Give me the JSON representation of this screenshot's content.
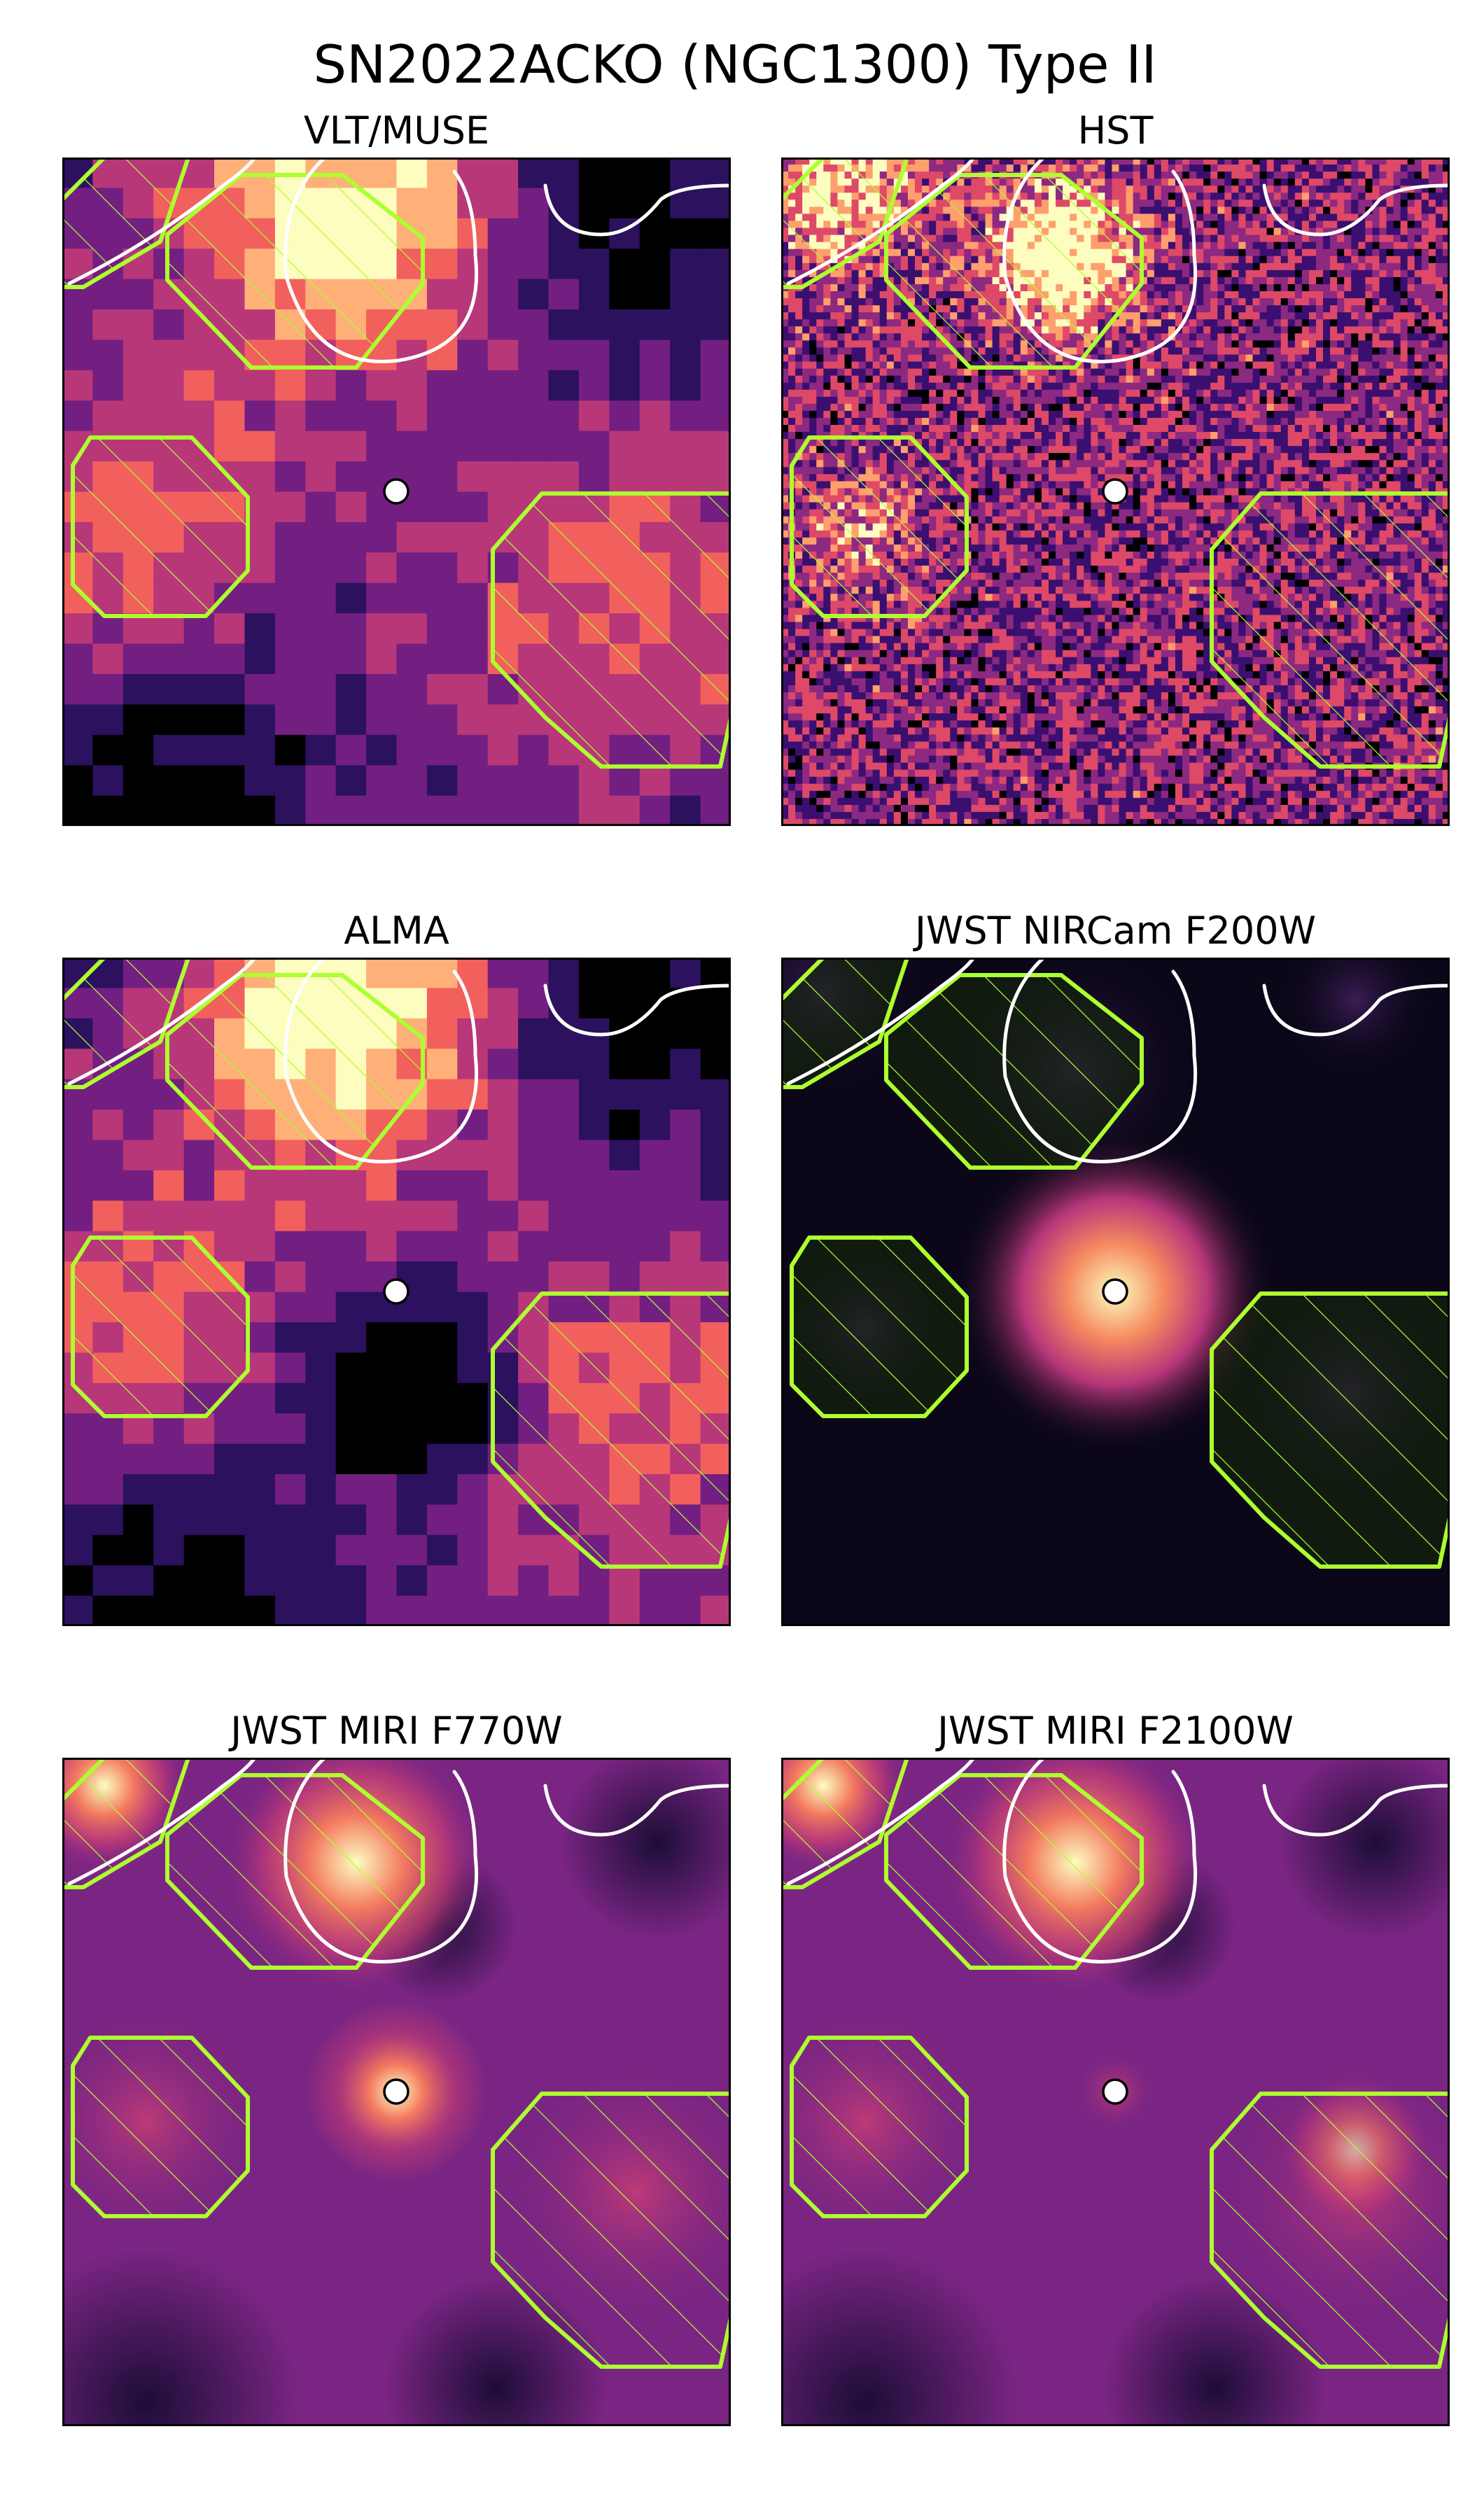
{
  "figure": {
    "title": "SN2022ACKO (NGC1300) Type II"
  },
  "panels": [
    {
      "id": "muse",
      "title": "VLT/MUSE",
      "style": "pixel-coarse",
      "source_glow": "none",
      "colors": [
        "#000000",
        "#2c115f",
        "#721f81",
        "#b73779",
        "#f1605d",
        "#feb078",
        "#fcfdbf"
      ]
    },
    {
      "id": "hst",
      "title": "HST",
      "style": "noise-fine",
      "source_glow": "none",
      "colors": [
        "#000004",
        "#3b0f70",
        "#8c2981",
        "#de4968",
        "#fe9f6d",
        "#fcfdbf"
      ]
    },
    {
      "id": "alma",
      "title": "ALMA",
      "style": "pixel-coarse",
      "source_glow": "none",
      "colors": [
        "#000000",
        "#2c115f",
        "#721f81",
        "#b73779",
        "#f1605d",
        "#feb078",
        "#fcfdbf"
      ]
    },
    {
      "id": "f200w",
      "title": "JWST NIRCam F200W",
      "style": "dark-smooth",
      "source_glow": "strong",
      "colors": [
        "#0b0718",
        "#231339",
        "#3b1d57",
        "#fcfdbf",
        "#f5895f",
        "#b5367a"
      ]
    },
    {
      "id": "f770w",
      "title": "JWST MIRI F770W",
      "style": "smooth",
      "source_glow": "medium",
      "colors": [
        "#170c33",
        "#3b1160",
        "#7a2583",
        "#c43c75",
        "#f37a5f",
        "#fcfdbf"
      ]
    },
    {
      "id": "f2100w",
      "title": "JWST MIRI F2100W",
      "style": "smooth",
      "source_glow": "weak",
      "colors": [
        "#170c33",
        "#3b1160",
        "#7a2583",
        "#c43c75",
        "#f37a5f",
        "#fcfdbf"
      ]
    }
  ],
  "overlay_colors": {
    "region_outline": "#adff2f",
    "contour": "#ffffff",
    "marker_fill": "#ffffff",
    "marker_edge": "#000000"
  }
}
